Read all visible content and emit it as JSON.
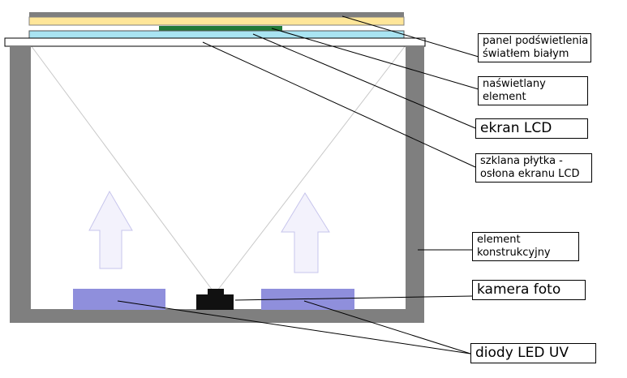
{
  "labels": {
    "backlight_panel": {
      "line1": "panel podświetlenia",
      "line2": "światłem białym"
    },
    "exposed_element": {
      "line1": "naświetlany",
      "line2": "element"
    },
    "lcd_screen": "ekran LCD",
    "glass_plate": {
      "line1": "szklana płytka -",
      "line2": "osłona ekranu LCD"
    },
    "frame_element": {
      "line1": "element",
      "line2": "konstrukcyjny"
    },
    "camera": "kamera foto",
    "uv_leds": "diody LED UV"
  },
  "colors": {
    "frame": "#7f7f7f",
    "backlight": "#ffe699",
    "exposed_element": "#217a38",
    "lcd_screen": "#a9e4f2",
    "glass_plate": "#ffffff",
    "led": "#8f8fdc",
    "camera": "#111111",
    "arrow_fill": "#f3f2fc",
    "arrow_stroke": "#c7c5ec",
    "light_rays": "#c8c8c8",
    "leader_lines": "#000000"
  }
}
